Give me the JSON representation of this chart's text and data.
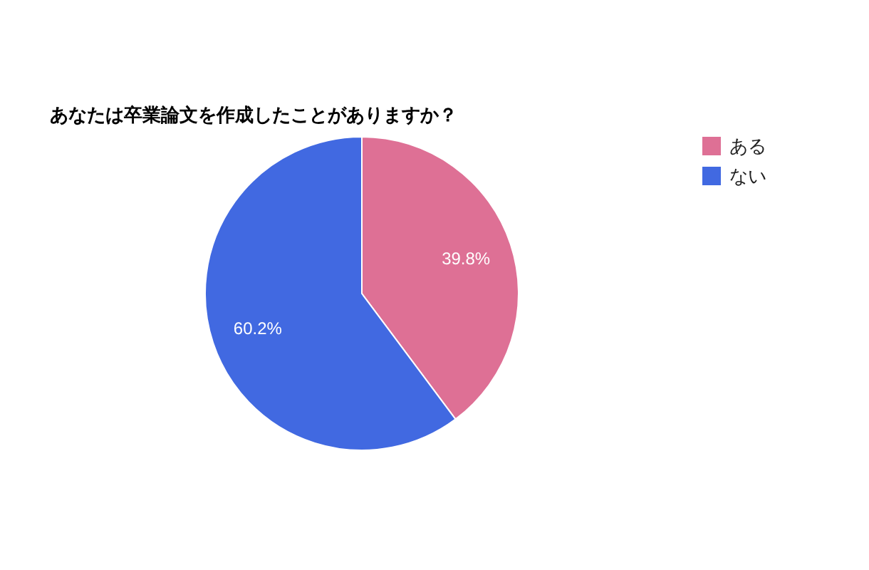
{
  "chart_data": {
    "type": "pie",
    "title": "あなたは卒業論文を作成したことがありますか？",
    "categories": [
      "ある",
      "ない"
    ],
    "values": [
      39.8,
      60.2
    ],
    "colors": [
      "#de7095",
      "#4169e1"
    ],
    "value_labels": [
      "39.8%",
      "60.2%"
    ],
    "legend": "top right"
  }
}
